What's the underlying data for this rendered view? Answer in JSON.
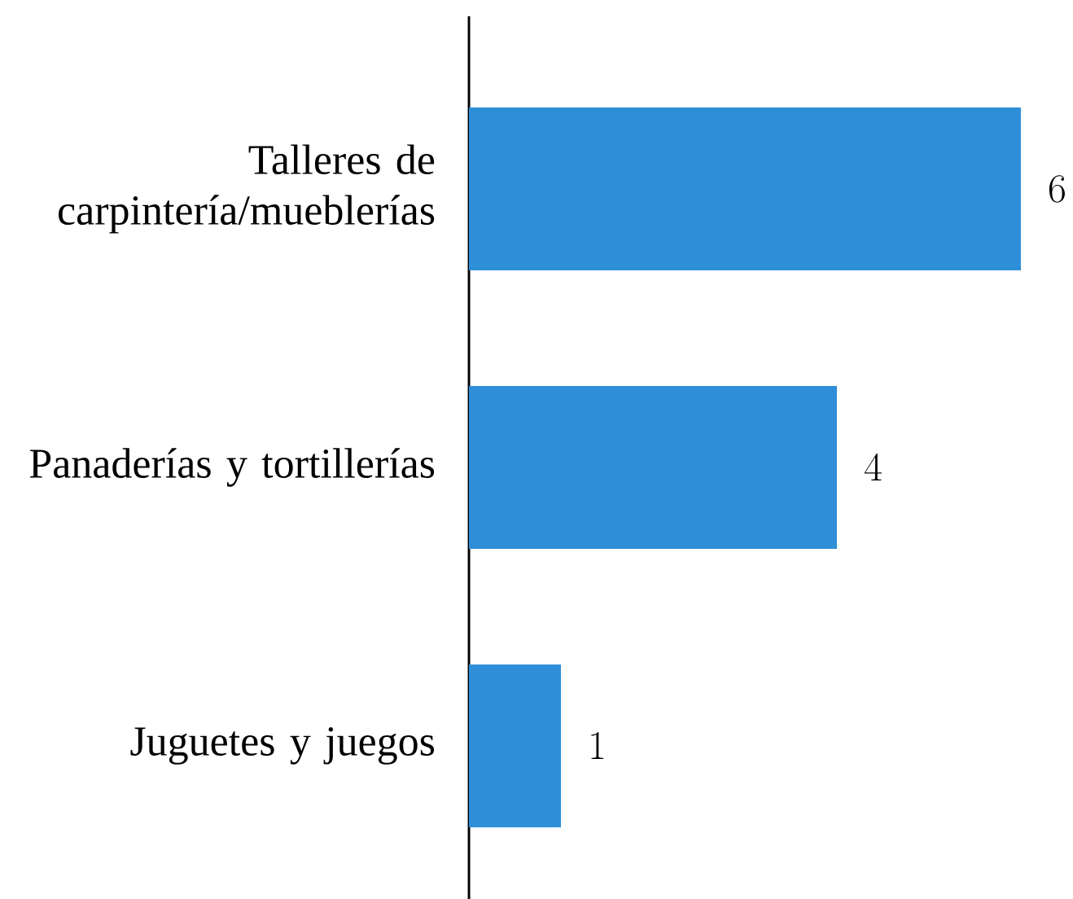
{
  "chart_data": {
    "type": "bar",
    "orientation": "horizontal",
    "categories": [
      "Talleres de carpintería/mueblerías",
      "Panaderías y tortillerías",
      "Juguetes y juegos"
    ],
    "values": [
      6,
      4,
      1
    ],
    "color": "#2e8fd8",
    "data_labels": true
  }
}
